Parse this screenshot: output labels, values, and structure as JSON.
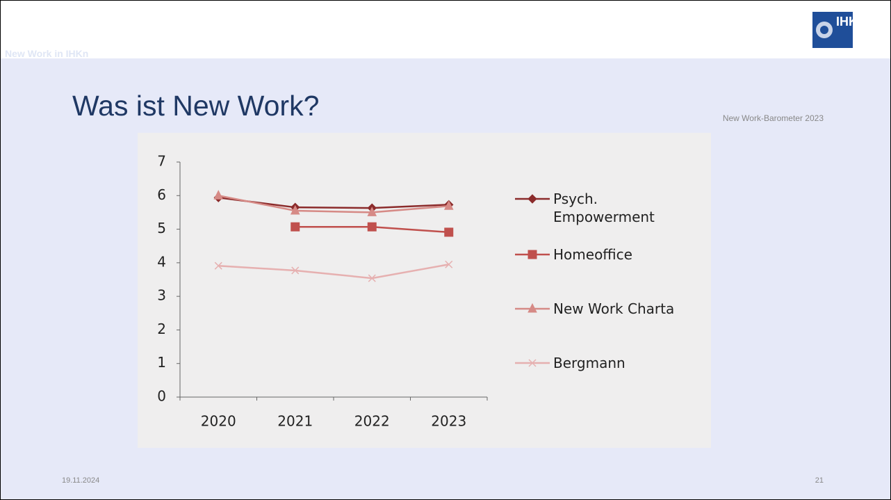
{
  "slide": {
    "header": "New Work in IHKn",
    "logo_text": "IHK",
    "title": "Was ist New Work?",
    "source": "New Work-Barometer 2023",
    "date": "19.11.2024",
    "page_number": "21"
  },
  "chart_data": {
    "type": "line",
    "categories": [
      "2020",
      "2021",
      "2022",
      "2023"
    ],
    "series": [
      {
        "name": "Psych. Empowerment",
        "color": "#8b2b2b",
        "marker": "diamond",
        "values": [
          5.94,
          5.65,
          5.63,
          5.73
        ]
      },
      {
        "name": "Homeoffice",
        "color": "#c0504d",
        "marker": "square",
        "values": [
          null,
          5.07,
          5.07,
          4.91
        ]
      },
      {
        "name": "New Work Charta",
        "color": "#d68a86",
        "marker": "triangle",
        "values": [
          6.0,
          5.55,
          5.5,
          5.69
        ]
      },
      {
        "name": "Bergmann",
        "color": "#e6b0b0",
        "marker": "x",
        "values": [
          3.91,
          3.77,
          3.54,
          3.95
        ]
      }
    ],
    "ylim": [
      0,
      7
    ],
    "yticks": [
      0,
      1,
      2,
      3,
      4,
      5,
      6,
      7
    ],
    "grid": false,
    "legend": "right"
  }
}
